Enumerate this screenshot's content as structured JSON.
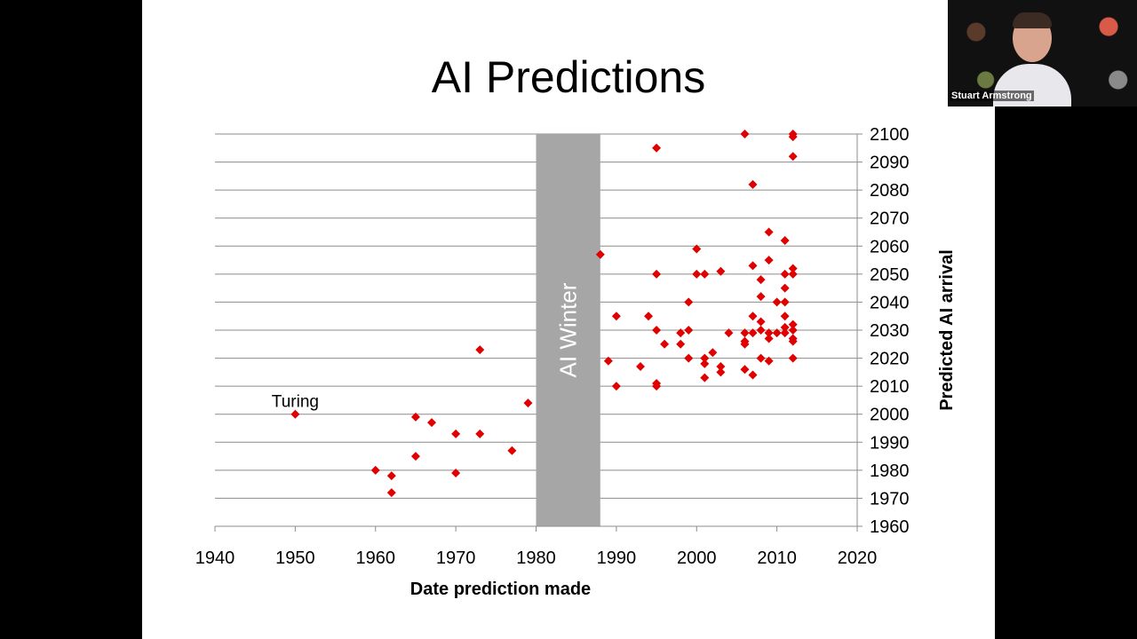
{
  "slide": {
    "title": "AI Predictions"
  },
  "video": {
    "participant_name": "Stuart Armstrong"
  },
  "chart_data": {
    "type": "scatter",
    "title": "AI Predictions",
    "xlabel": "Date prediction made",
    "ylabel": "Predicted AI arrival",
    "xlim": [
      1940,
      2020
    ],
    "ylim": [
      1960,
      2100
    ],
    "x_ticks": [
      1940,
      1950,
      1960,
      1970,
      1980,
      1990,
      2000,
      2010,
      2020
    ],
    "y_ticks": [
      1960,
      1970,
      1980,
      1990,
      2000,
      2010,
      2020,
      2030,
      2040,
      2050,
      2060,
      2070,
      2080,
      2090,
      2100
    ],
    "grid": "horizontal",
    "marker_color": "#e00000",
    "shaded_region": {
      "label": "AI Winter",
      "x_range": [
        1980,
        1988
      ],
      "color": "#a6a6a6"
    },
    "annotations": [
      {
        "text": "Turing",
        "x": 1950,
        "y": 2000
      }
    ],
    "points": [
      [
        1950,
        2000
      ],
      [
        1960,
        1980
      ],
      [
        1962,
        1978
      ],
      [
        1962,
        1972
      ],
      [
        1965,
        1999
      ],
      [
        1965,
        1985
      ],
      [
        1967,
        1997
      ],
      [
        1970,
        1993
      ],
      [
        1970,
        1979
      ],
      [
        1973,
        2023
      ],
      [
        1973,
        1993
      ],
      [
        1977,
        1987
      ],
      [
        1979,
        2004
      ],
      [
        1988,
        2057
      ],
      [
        1989,
        2019
      ],
      [
        1990,
        2035
      ],
      [
        1990,
        2010
      ],
      [
        1993,
        2017
      ],
      [
        1994,
        2035
      ],
      [
        1995,
        2095
      ],
      [
        1995,
        2050
      ],
      [
        1995,
        2030
      ],
      [
        1995,
        2011
      ],
      [
        1995,
        2010
      ],
      [
        1996,
        2025
      ],
      [
        1998,
        2029
      ],
      [
        1998,
        2025
      ],
      [
        1999,
        2040
      ],
      [
        1999,
        2030
      ],
      [
        1999,
        2020
      ],
      [
        2000,
        2059
      ],
      [
        2000,
        2050
      ],
      [
        2001,
        2050
      ],
      [
        2001,
        2020
      ],
      [
        2001,
        2018
      ],
      [
        2001,
        2013
      ],
      [
        2002,
        2022
      ],
      [
        2003,
        2051
      ],
      [
        2003,
        2017
      ],
      [
        2003,
        2015
      ],
      [
        2004,
        2029
      ],
      [
        2006,
        2100
      ],
      [
        2006,
        2029
      ],
      [
        2006,
        2026
      ],
      [
        2006,
        2025
      ],
      [
        2006,
        2016
      ],
      [
        2007,
        2082
      ],
      [
        2007,
        2053
      ],
      [
        2007,
        2035
      ],
      [
        2007,
        2029
      ],
      [
        2007,
        2014
      ],
      [
        2008,
        2048
      ],
      [
        2008,
        2042
      ],
      [
        2008,
        2033
      ],
      [
        2008,
        2030
      ],
      [
        2008,
        2020
      ],
      [
        2009,
        2065
      ],
      [
        2009,
        2055
      ],
      [
        2009,
        2029
      ],
      [
        2009,
        2027
      ],
      [
        2009,
        2019
      ],
      [
        2010,
        2040
      ],
      [
        2010,
        2029
      ],
      [
        2011,
        2062
      ],
      [
        2011,
        2050
      ],
      [
        2011,
        2045
      ],
      [
        2011,
        2040
      ],
      [
        2011,
        2035
      ],
      [
        2011,
        2031
      ],
      [
        2011,
        2029
      ],
      [
        2012,
        2100
      ],
      [
        2012,
        2099
      ],
      [
        2012,
        2092
      ],
      [
        2012,
        2052
      ],
      [
        2012,
        2050
      ],
      [
        2012,
        2032
      ],
      [
        2012,
        2030
      ],
      [
        2012,
        2027
      ],
      [
        2012,
        2026
      ],
      [
        2012,
        2020
      ]
    ]
  }
}
